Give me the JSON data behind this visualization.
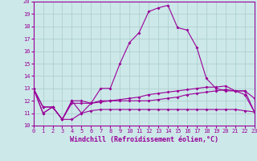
{
  "xlabel": "Windchill (Refroidissement éolien,°C)",
  "bg_color": "#cce8e8",
  "grid_color": "#aacccc",
  "line_color": "#990099",
  "x": [
    0,
    1,
    2,
    3,
    4,
    5,
    6,
    7,
    8,
    9,
    10,
    11,
    12,
    13,
    14,
    15,
    16,
    17,
    18,
    19,
    20,
    21,
    22,
    23
  ],
  "series1": [
    13.0,
    11.0,
    11.5,
    10.5,
    12.0,
    11.0,
    11.8,
    13.0,
    13.0,
    15.0,
    16.7,
    17.5,
    19.2,
    19.5,
    19.7,
    17.9,
    17.7,
    16.3,
    13.8,
    13.0,
    12.8,
    12.8,
    12.8,
    12.2
  ],
  "series2": [
    13.0,
    11.5,
    11.5,
    10.5,
    12.0,
    12.0,
    11.8,
    12.0,
    12.0,
    12.1,
    12.2,
    12.3,
    12.5,
    12.6,
    12.7,
    12.8,
    12.9,
    13.0,
    13.1,
    13.1,
    13.2,
    12.8,
    12.8,
    11.1
  ],
  "series3": [
    13.0,
    11.5,
    11.5,
    10.5,
    11.8,
    11.8,
    11.8,
    11.9,
    12.0,
    12.0,
    12.0,
    12.0,
    12.0,
    12.1,
    12.2,
    12.3,
    12.5,
    12.6,
    12.7,
    12.8,
    12.9,
    12.8,
    12.5,
    11.1
  ],
  "series4": [
    13.0,
    11.0,
    11.5,
    10.5,
    10.5,
    11.0,
    11.2,
    11.3,
    11.3,
    11.3,
    11.3,
    11.3,
    11.3,
    11.3,
    11.3,
    11.3,
    11.3,
    11.3,
    11.3,
    11.3,
    11.3,
    11.3,
    11.2,
    11.1
  ],
  "ylim": [
    10,
    20
  ],
  "xlim": [
    0,
    23
  ],
  "yticks": [
    10,
    11,
    12,
    13,
    14,
    15,
    16,
    17,
    18,
    19,
    20
  ],
  "xticks": [
    0,
    1,
    2,
    3,
    4,
    5,
    6,
    7,
    8,
    9,
    10,
    11,
    12,
    13,
    14,
    15,
    16,
    17,
    18,
    19,
    20,
    21,
    22,
    23
  ],
  "tick_fontsize": 5.0,
  "xlabel_fontsize": 6.0,
  "figsize": [
    3.2,
    2.0
  ],
  "dpi": 100
}
